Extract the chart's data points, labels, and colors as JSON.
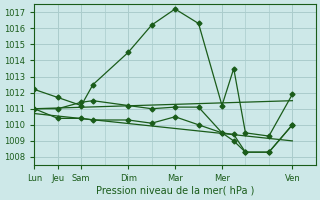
{
  "background_color": "#cde8e8",
  "grid_color": "#aacccc",
  "line_color": "#1a5c1a",
  "xlabel": "Pression niveau de la mer( hPa )",
  "ylim": [
    1007.5,
    1017.5
  ],
  "yticks": [
    1008,
    1009,
    1010,
    1011,
    1012,
    1013,
    1014,
    1015,
    1016,
    1017
  ],
  "xtick_major_pos": [
    0,
    2,
    4,
    8,
    12,
    16,
    22
  ],
  "xtick_major_labels": [
    "Lun",
    "Jeu",
    "Sam",
    "Dim",
    "Mar",
    "Mer",
    "Ven"
  ],
  "xmax": 24,
  "line1_x": [
    0,
    2,
    4,
    5,
    8,
    10,
    12,
    14,
    16,
    17,
    18,
    20,
    22
  ],
  "line1_y": [
    1012.2,
    1011.7,
    1011.2,
    1012.5,
    1014.5,
    1016.2,
    1017.2,
    1016.3,
    1011.2,
    1013.5,
    1009.5,
    1009.3,
    1011.9
  ],
  "line2_x": [
    0,
    2,
    4,
    5,
    8,
    10,
    12,
    14,
    16,
    17,
    18,
    20,
    22
  ],
  "line2_y": [
    1011.0,
    1011.0,
    1011.4,
    1011.5,
    1011.2,
    1011.0,
    1011.1,
    1011.1,
    1009.5,
    1009.4,
    1008.3,
    1008.3,
    1010.0
  ],
  "line3_x": [
    0,
    2,
    4,
    5,
    8,
    10,
    12,
    14,
    16,
    17,
    18,
    20,
    22
  ],
  "line3_y": [
    1011.0,
    1010.4,
    1010.4,
    1010.3,
    1010.3,
    1010.1,
    1010.5,
    1010.0,
    1009.5,
    1009.0,
    1008.3,
    1008.3,
    1010.0
  ],
  "trend1_x": [
    0,
    22
  ],
  "trend1_y": [
    1011.0,
    1011.5
  ],
  "trend2_x": [
    0,
    22
  ],
  "trend2_y": [
    1010.7,
    1009.0
  ]
}
